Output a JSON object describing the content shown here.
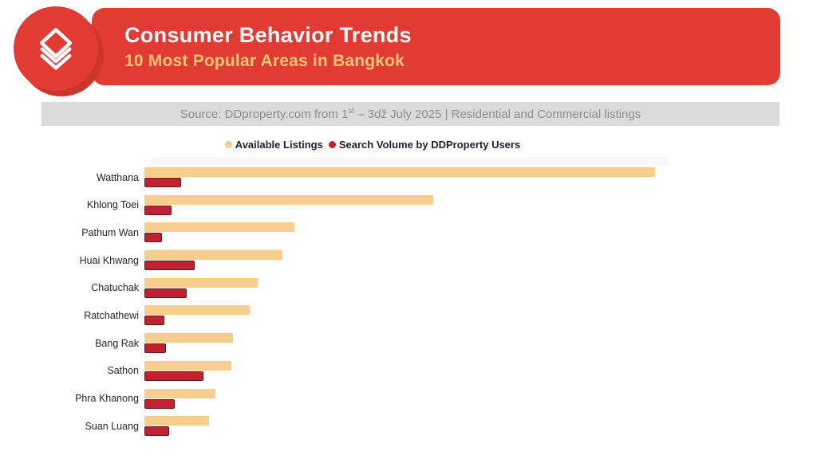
{
  "header": {
    "title": "Consumer Behavior Trends",
    "subtitle": "10 Most Popular Areas in Bangkok",
    "banner_color": "#E23B33"
  },
  "logo": {
    "icon": "ddproperty-stacked-house-chevrons-icon",
    "circle_color": "#E23B33",
    "shadow_color": "#C9372C"
  },
  "source_bar": {
    "part1": "Source: DDproperty.com from 1",
    "sup": "st",
    "part2": " – 3dž  July 2025 | Residential and Commercial listings",
    "bg_color": "#DBDBDB",
    "text_color": "#8D8D8D"
  },
  "legend": {
    "items": [
      {
        "label": "Available Listings",
        "color": "#F2CE8C"
      },
      {
        "label": "Search Volume by DDProperty Users",
        "color": "#C2212F"
      }
    ]
  },
  "chart_data": {
    "type": "bar",
    "orientation": "horizontal",
    "title": "Consumer Behavior Trends — 10 Most Popular Areas in Bangkok",
    "value_axis_label": "",
    "axis_note": "no numeric axis shown; values are relative bar lengths, max listings bar = 100",
    "grid": false,
    "legend_position": "top-center",
    "categories": [
      "Watthana",
      "Khlong Toei",
      "Pathum Wan",
      "Huai Khwang",
      "Chatuchak",
      "Ratchathewi",
      "Bang Rak",
      "Sathon",
      "Phra Khanong",
      "Suan Luang"
    ],
    "series": [
      {
        "name": "Available Listings",
        "color": "#F7CE8E",
        "values": [
          100,
          56.6,
          29.4,
          27.0,
          22.2,
          20.6,
          17.3,
          17.0,
          13.9,
          12.7
        ]
      },
      {
        "name": "Search Volume by DDProperty Users",
        "color": "#C2212F",
        "border_color": "#5E1822",
        "values": [
          7.2,
          5.3,
          3.4,
          9.8,
          8.3,
          3.9,
          4.2,
          11.6,
          5.9,
          4.8
        ]
      }
    ]
  }
}
